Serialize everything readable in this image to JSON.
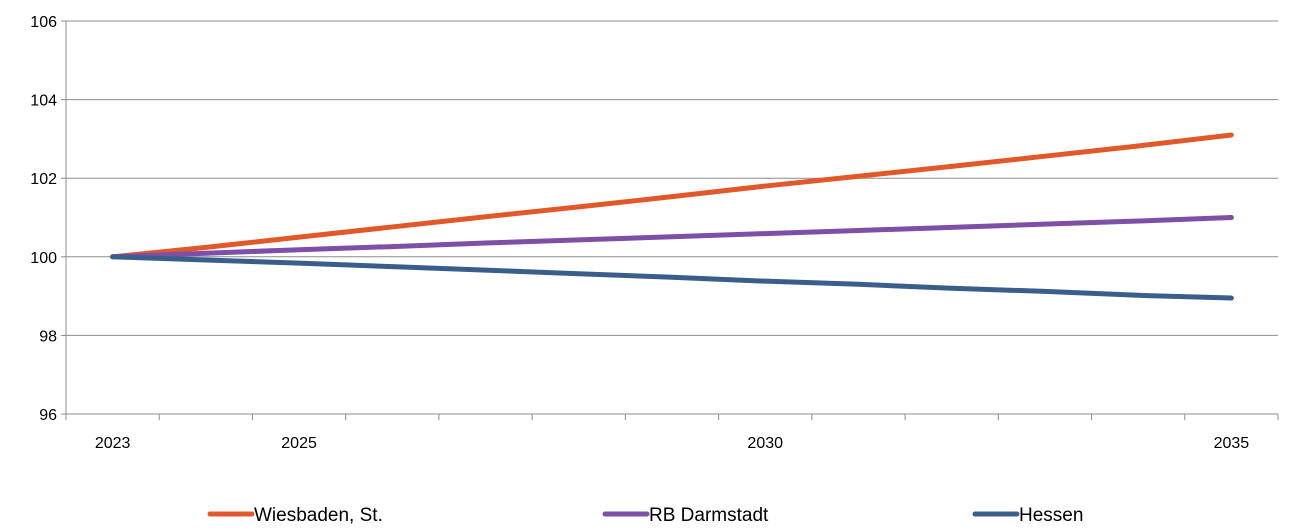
{
  "chart_data": {
    "type": "line",
    "title": "",
    "xlabel": "",
    "ylabel": "",
    "x": [
      2023,
      2024,
      2025,
      2026,
      2027,
      2028,
      2029,
      2030,
      2031,
      2032,
      2033,
      2034,
      2035
    ],
    "xlim": [
      2022.5,
      2035.5
    ],
    "x_tick_labels": [
      {
        "x": 2023,
        "label": "2023"
      },
      {
        "x": 2025,
        "label": "2025"
      },
      {
        "x": 2030,
        "label": "2030"
      },
      {
        "x": 2035,
        "label": "2035"
      }
    ],
    "ylim": [
      96,
      106
    ],
    "y_ticks": [
      96,
      98,
      100,
      102,
      104,
      106
    ],
    "y_tick_labels": [
      "96",
      "98",
      "100",
      "102",
      "104",
      "106"
    ],
    "grid": "horizontal",
    "legend_position": "bottom",
    "series": [
      {
        "name": "Wiesbaden, St.",
        "color": "#E1592B",
        "values": [
          100.0,
          100.24,
          100.5,
          100.76,
          101.02,
          101.27,
          101.53,
          101.8,
          102.05,
          102.3,
          102.56,
          102.82,
          103.1
        ]
      },
      {
        "name": "RB Darmstadt",
        "color": "#7E4FA6",
        "values": [
          100.0,
          100.09,
          100.18,
          100.26,
          100.35,
          100.43,
          100.51,
          100.59,
          100.67,
          100.75,
          100.83,
          100.91,
          101.0
        ]
      },
      {
        "name": "Hessen",
        "color": "#3A5E8C",
        "values": [
          100.0,
          99.92,
          99.84,
          99.75,
          99.66,
          99.57,
          99.48,
          99.38,
          99.3,
          99.2,
          99.12,
          99.02,
          98.95
        ]
      }
    ]
  }
}
